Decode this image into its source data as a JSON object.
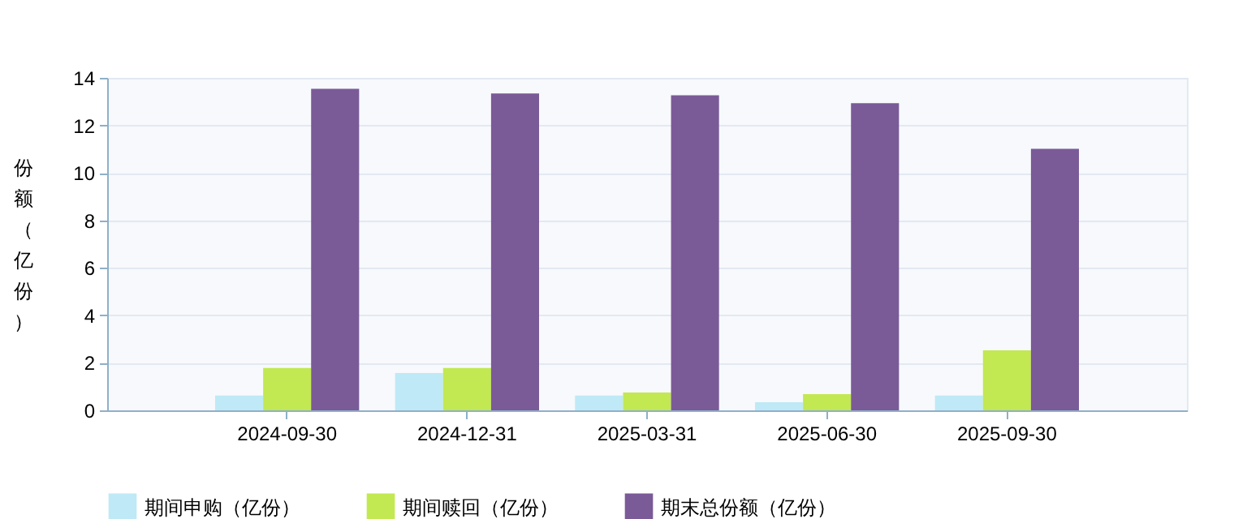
{
  "chart_data": {
    "type": "bar",
    "ylabel": "份额（亿份）",
    "categories": [
      "2024-09-30",
      "2024-12-31",
      "2025-03-31",
      "2025-06-30",
      "2025-09-30"
    ],
    "series": [
      {
        "name": "期间申购（亿份）",
        "color": "#bfe9f6",
        "values": [
          0.62,
          1.57,
          0.62,
          0.34,
          0.62
        ]
      },
      {
        "name": "期间赎回（亿份）",
        "color": "#c2e852",
        "values": [
          1.78,
          1.78,
          0.75,
          0.68,
          2.53
        ]
      },
      {
        "name": "期末总份额（亿份）",
        "color": "#7b5a98",
        "values": [
          13.54,
          13.34,
          13.27,
          12.93,
          11.01
        ]
      }
    ],
    "ylim": [
      0,
      14
    ],
    "yticks": [
      0,
      2,
      4,
      6,
      8,
      10,
      12,
      14
    ],
    "grid": "y",
    "legend": "bottom"
  }
}
